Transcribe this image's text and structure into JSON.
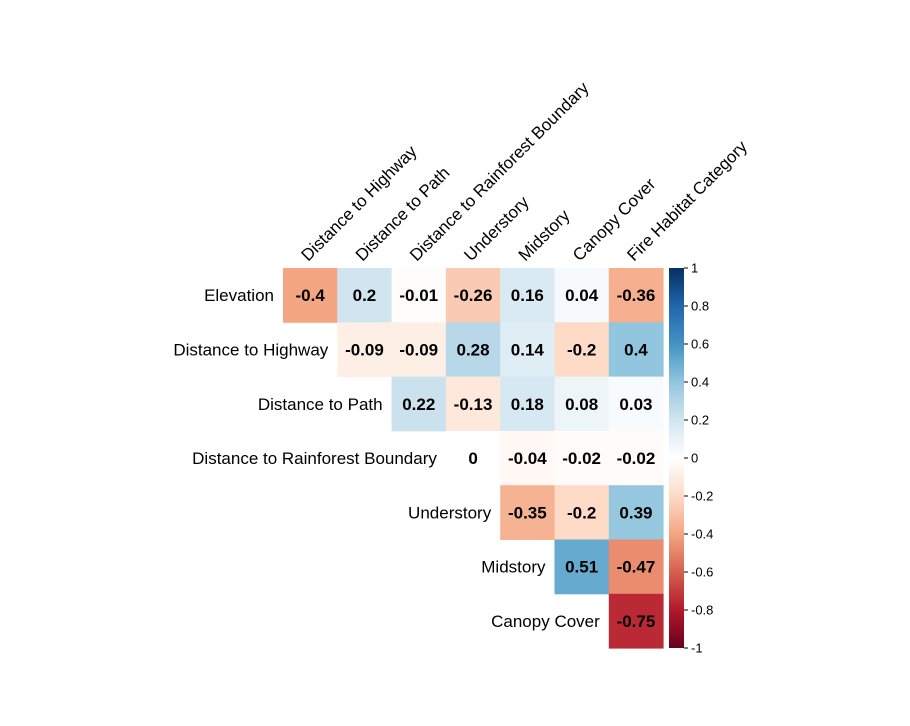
{
  "chart_data": {
    "type": "heatmap",
    "title": "",
    "row_labels": [
      "Elevation",
      "Distance to Highway",
      "Distance to Path",
      "Distance to Rainforest Boundary",
      "Understory",
      "Midstory",
      "Canopy Cover"
    ],
    "col_labels": [
      "Distance to Highway",
      "Distance to Path",
      "Distance to Rainforest Boundary",
      "Understory",
      "Midstory",
      "Canopy Cover",
      "Fire Habitat Category"
    ],
    "values": [
      [
        -0.4,
        0.2,
        -0.01,
        -0.26,
        0.16,
        0.04,
        -0.36
      ],
      [
        null,
        -0.09,
        -0.09,
        0.28,
        0.14,
        -0.2,
        0.4
      ],
      [
        null,
        null,
        0.22,
        -0.13,
        0.18,
        0.08,
        0.03
      ],
      [
        null,
        null,
        null,
        0,
        -0.04,
        -0.02,
        -0.02
      ],
      [
        null,
        null,
        null,
        null,
        -0.35,
        -0.2,
        0.39
      ],
      [
        null,
        null,
        null,
        null,
        null,
        0.51,
        -0.47
      ],
      [
        null,
        null,
        null,
        null,
        null,
        null,
        -0.75
      ]
    ],
    "value_labels": [
      [
        "-0.4",
        "0.2",
        "-0.01",
        "-0.26",
        "0.16",
        "0.04",
        "-0.36"
      ],
      [
        null,
        "-0.09",
        "-0.09",
        "0.28",
        "0.14",
        "-0.2",
        "0.4"
      ],
      [
        null,
        null,
        "0.22",
        "-0.13",
        "0.18",
        "0.08",
        "0.03"
      ],
      [
        null,
        null,
        null,
        "0",
        "-0.04",
        "-0.02",
        "-0.02"
      ],
      [
        null,
        null,
        null,
        null,
        "-0.35",
        "-0.2",
        "0.39"
      ],
      [
        null,
        null,
        null,
        null,
        null,
        "0.51",
        "-0.47"
      ],
      [
        null,
        null,
        null,
        null,
        null,
        null,
        "-0.75"
      ]
    ],
    "colorbar": {
      "range": [
        -1,
        1
      ],
      "ticks": [
        "1",
        "0.8",
        "0.6",
        "0.4",
        "0.2",
        "0",
        "-0.2",
        "-0.4",
        "-0.6",
        "-0.8",
        "-1"
      ],
      "tick_values": [
        1,
        0.8,
        0.6,
        0.4,
        0.2,
        0,
        -0.2,
        -0.4,
        -0.6,
        -0.8,
        -1
      ],
      "colors": [
        "#67001F",
        "#B2182B",
        "#D6604D",
        "#F4A582",
        "#FDDBC7",
        "#FFFFFF",
        "#D1E5F0",
        "#92C5DE",
        "#4393C3",
        "#2166AC",
        "#053061"
      ]
    },
    "legend": "right"
  }
}
